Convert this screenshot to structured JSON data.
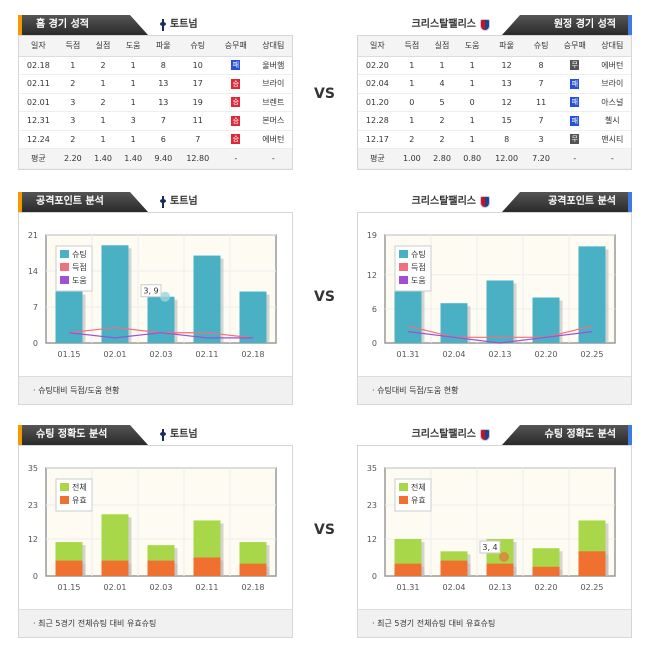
{
  "vs_label": "VS",
  "home": {
    "team": "토트넘",
    "record_title": "홈 경기 성적",
    "columns": [
      "일자",
      "득점",
      "실점",
      "도움",
      "파울",
      "슈팅",
      "승무패",
      "상대팀"
    ],
    "rows": [
      {
        "date": "02.18",
        "gf": "1",
        "ga": "2",
        "ast": "1",
        "foul": "8",
        "shots": "10",
        "result": "패",
        "opp": "울버햄"
      },
      {
        "date": "02.11",
        "gf": "2",
        "ga": "1",
        "ast": "1",
        "foul": "13",
        "shots": "17",
        "result": "승",
        "opp": "브라이"
      },
      {
        "date": "02.01",
        "gf": "3",
        "ga": "2",
        "ast": "1",
        "foul": "13",
        "shots": "19",
        "result": "승",
        "opp": "브렌트"
      },
      {
        "date": "12.31",
        "gf": "3",
        "ga": "1",
        "ast": "3",
        "foul": "7",
        "shots": "11",
        "result": "승",
        "opp": "본머스"
      },
      {
        "date": "12.24",
        "gf": "2",
        "ga": "1",
        "ast": "1",
        "foul": "6",
        "shots": "7",
        "result": "승",
        "opp": "에버턴"
      }
    ],
    "avg": {
      "label": "평균",
      "gf": "2.20",
      "ga": "1.40",
      "ast": "1.40",
      "foul": "9.40",
      "shots": "12.80",
      "result": "-",
      "opp": "-"
    },
    "attack_title": "공격포인트 분석",
    "attack_footer": "슈팅대비 득점/도움 현황",
    "accuracy_title": "슈팅 정확도 분석",
    "accuracy_footer": "최근 5경기 전체슈팅 대비 유효슈팅"
  },
  "away": {
    "team": "크리스탈팰리스",
    "record_title": "원정 경기 성적",
    "columns": [
      "일자",
      "득점",
      "실점",
      "도움",
      "파울",
      "슈팅",
      "승무패",
      "상대팀"
    ],
    "rows": [
      {
        "date": "02.20",
        "gf": "1",
        "ga": "1",
        "ast": "1",
        "foul": "12",
        "shots": "8",
        "result": "무",
        "opp": "에버턴"
      },
      {
        "date": "02.04",
        "gf": "1",
        "ga": "4",
        "ast": "1",
        "foul": "13",
        "shots": "7",
        "result": "패",
        "opp": "브라이"
      },
      {
        "date": "01.20",
        "gf": "0",
        "ga": "5",
        "ast": "0",
        "foul": "12",
        "shots": "11",
        "result": "패",
        "opp": "아스널"
      },
      {
        "date": "12.28",
        "gf": "1",
        "ga": "2",
        "ast": "1",
        "foul": "15",
        "shots": "7",
        "result": "패",
        "opp": "첼시"
      },
      {
        "date": "12.17",
        "gf": "2",
        "ga": "2",
        "ast": "1",
        "foul": "8",
        "shots": "3",
        "result": "무",
        "opp": "맨시티"
      }
    ],
    "avg": {
      "label": "평균",
      "gf": "1.00",
      "ga": "2.80",
      "ast": "0.80",
      "foul": "12.00",
      "shots": "7.20",
      "result": "-",
      "opp": "-"
    },
    "attack_title": "공격포인트 분석",
    "attack_footer": "슈팅대비 득점/도움 현황",
    "accuracy_title": "슈팅 정확도 분석",
    "accuracy_footer": "최근 5경기 전체슈팅 대비 유효슈팅"
  },
  "result_colors": {
    "승": "#e0283a",
    "패": "#2850d8",
    "무": "#555555"
  },
  "chart_data": [
    {
      "id": "home-attack",
      "type": "bar",
      "categories": [
        "01.15",
        "02.01",
        "02.03",
        "02.11",
        "02.18"
      ],
      "yticks": [
        0,
        7,
        14,
        21
      ],
      "ylim": [
        0,
        21
      ],
      "grid": true,
      "legend": "top-left",
      "series": [
        {
          "name": "슈팅",
          "kind": "bar",
          "color": "#4ab0c4",
          "values": [
            10,
            19,
            9,
            17,
            10
          ]
        },
        {
          "name": "득점",
          "kind": "line",
          "color": "#f07080",
          "values": [
            2,
            3,
            2,
            2,
            1
          ]
        },
        {
          "name": "도움",
          "kind": "line",
          "color": "#a050d0",
          "values": [
            2,
            1,
            2,
            1,
            1
          ]
        }
      ],
      "tooltip": {
        "text": "3, 9",
        "index": 2
      }
    },
    {
      "id": "away-attack",
      "type": "bar",
      "categories": [
        "01.31",
        "02.04",
        "02.13",
        "02.20",
        "02.25"
      ],
      "yticks": [
        0,
        6,
        12,
        19
      ],
      "ylim": [
        0,
        19
      ],
      "grid": true,
      "legend": "top-left",
      "series": [
        {
          "name": "슈팅",
          "kind": "bar",
          "color": "#4ab0c4",
          "values": [
            10,
            7,
            11,
            8,
            17
          ]
        },
        {
          "name": "득점",
          "kind": "line",
          "color": "#f07080",
          "values": [
            3,
            1,
            1,
            1,
            3
          ]
        },
        {
          "name": "도움",
          "kind": "line",
          "color": "#a050d0",
          "values": [
            2,
            1,
            0,
            1,
            2
          ]
        }
      ]
    },
    {
      "id": "home-accuracy",
      "type": "bar",
      "categories": [
        "01.15",
        "02.01",
        "02.03",
        "02.11",
        "02.18"
      ],
      "yticks": [
        0,
        12,
        23,
        35
      ],
      "ylim": [
        0,
        35
      ],
      "grid": true,
      "legend": "top-left",
      "overlay": true,
      "series": [
        {
          "name": "전체",
          "kind": "bar",
          "color": "#a8d84a",
          "values": [
            11,
            20,
            10,
            18,
            11
          ]
        },
        {
          "name": "유효",
          "kind": "bar",
          "color": "#f07030",
          "values": [
            5,
            5,
            5,
            6,
            4
          ]
        }
      ]
    },
    {
      "id": "away-accuracy",
      "type": "bar",
      "categories": [
        "01.31",
        "02.04",
        "02.13",
        "02.20",
        "02.25"
      ],
      "yticks": [
        0,
        12,
        23,
        35
      ],
      "ylim": [
        0,
        35
      ],
      "grid": true,
      "legend": "top-left",
      "overlay": true,
      "series": [
        {
          "name": "전체",
          "kind": "bar",
          "color": "#a8d84a",
          "values": [
            12,
            8,
            12,
            9,
            18
          ]
        },
        {
          "name": "유효",
          "kind": "bar",
          "color": "#f07030",
          "values": [
            4,
            5,
            4,
            3,
            8
          ]
        }
      ],
      "tooltip": {
        "text": "3, 4",
        "index": 2
      }
    }
  ]
}
